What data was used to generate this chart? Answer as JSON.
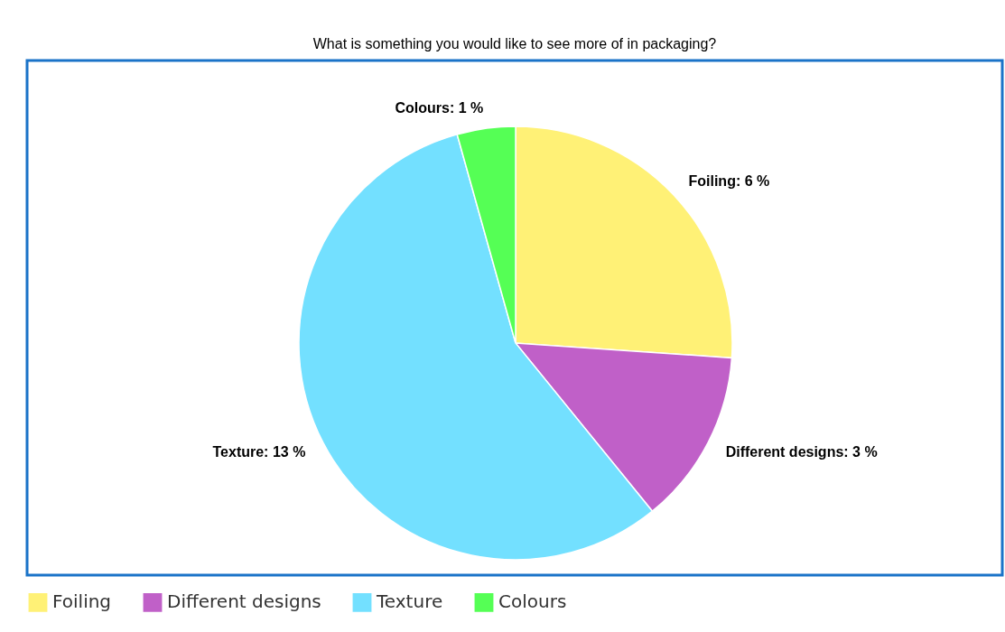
{
  "chart_data": {
    "type": "pie",
    "title": "What is something you would like to see more of in packaging?",
    "categories": [
      "Foiling",
      "Different designs",
      "Texture",
      "Colours"
    ],
    "values": [
      6,
      3,
      13,
      1
    ],
    "value_labels": [
      "Foiling: 6 %",
      "Different designs: 3 %",
      "Texture: 13 %",
      "Colours: 1 %"
    ],
    "colors": [
      "#fff176",
      "#c060c8",
      "#73e0ff",
      "#55ff55"
    ],
    "legend": "bottom"
  }
}
